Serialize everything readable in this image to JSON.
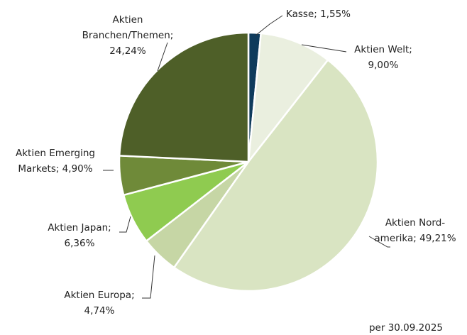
{
  "chart_data": {
    "type": "pie",
    "labels": [
      [
        "Kasse; 1,55%"
      ],
      [
        "Aktien Welt;",
        "9,00%"
      ],
      [
        "Aktien Nord-",
        "amerika; 49,21%"
      ],
      [
        "Aktien Europa;",
        "4,74%"
      ],
      [
        "Aktien Japan;",
        "6,36%"
      ],
      [
        "Aktien Emerging",
        "Markets; 4,90%"
      ],
      [
        "Aktien",
        "Branchen/Themen;",
        "24,24%"
      ]
    ],
    "values": [
      1.55,
      9.0,
      49.21,
      4.74,
      6.36,
      4.9,
      24.24
    ],
    "colors": [
      "#0f3b5c",
      "#eaefdf",
      "#d9e4c2",
      "#c6d6a5",
      "#8fcb50",
      "#6f8a39",
      "#4e5f28"
    ],
    "footnote": "per 30.09.2025"
  }
}
